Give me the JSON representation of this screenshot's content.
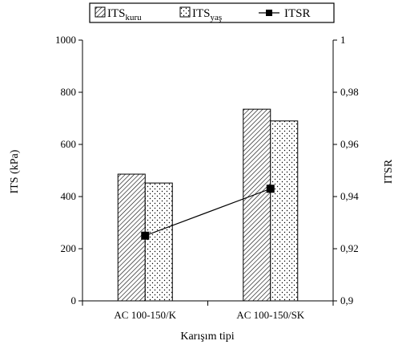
{
  "chart_data": {
    "type": "bar",
    "categories": [
      "AC 100-150/K",
      "AC 100-150/SK"
    ],
    "series": [
      {
        "name": "ITS kuru",
        "label_main": "ITS",
        "label_sub": "kuru",
        "kind": "bar",
        "pattern": "hatch",
        "values": [
          486,
          735
        ]
      },
      {
        "name": "ITS yaş",
        "label_main": "ITS",
        "label_sub": "yaş",
        "kind": "bar",
        "pattern": "dots",
        "values": [
          452,
          690
        ]
      },
      {
        "name": "ITSR",
        "kind": "line",
        "marker": "square",
        "axis": "right",
        "values": [
          0.925,
          0.943
        ]
      }
    ],
    "xlabel": "Karışım tipi",
    "ylabel": "ITS (kPa)",
    "ylabel_right": "ITSR",
    "ylim": [
      0,
      1000
    ],
    "ylim_right": [
      0.9,
      1.0
    ],
    "yticks": [
      "0",
      "200",
      "400",
      "600",
      "800",
      "1000"
    ],
    "yticks_right": [
      "0,9",
      "0,92",
      "0,94",
      "0,96",
      "0,98",
      "1"
    ],
    "grid": false,
    "legend_position": "top-center",
    "colors": {
      "axis": "#000000",
      "bar_fill": "#ffffff",
      "marker": "#000000"
    }
  }
}
